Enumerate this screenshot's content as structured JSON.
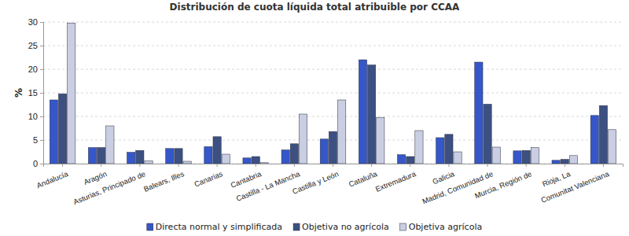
{
  "chart_data": {
    "type": "bar",
    "title": "Distribución de cuota líquida total atribuible por CCAA",
    "y_label": "%",
    "categories": [
      "Andalucía",
      "Aragón",
      "Asturias, Principado de",
      "Balears, Illes",
      "Canarias",
      "Cantabria",
      "Castilla - La Mancha",
      "Castilla y León",
      "Cataluña",
      "Extremadura",
      "Galicia",
      "Madrid, Comunidad de",
      "Murcia, Región de",
      "Rioja, La",
      "Comunitat Valenciana"
    ],
    "series": [
      {
        "name": "Directa normal y simplificada",
        "color": "#3557c8",
        "values": [
          13.5,
          3.4,
          2.4,
          3.2,
          3.6,
          1.2,
          2.9,
          5.2,
          22.0,
          1.9,
          5.5,
          21.5,
          2.7,
          0.7,
          10.2
        ]
      },
      {
        "name": "Objetiva no agrícola",
        "color": "#3c5182",
        "values": [
          14.8,
          3.4,
          2.8,
          3.2,
          5.7,
          1.5,
          4.2,
          6.8,
          20.9,
          1.5,
          6.2,
          12.6,
          2.8,
          0.9,
          12.3
        ]
      },
      {
        "name": "Objetiva agrícola",
        "color": "#c9cee2",
        "values": [
          29.8,
          8.0,
          0.6,
          0.5,
          2.0,
          0.2,
          10.5,
          13.5,
          9.8,
          7.0,
          2.5,
          3.5,
          3.4,
          1.7,
          7.2
        ]
      }
    ],
    "ylim": [
      0,
      30
    ],
    "yticks": [
      0,
      5,
      10,
      15,
      20,
      25,
      30
    ],
    "grid": true,
    "legend": "bottom"
  }
}
